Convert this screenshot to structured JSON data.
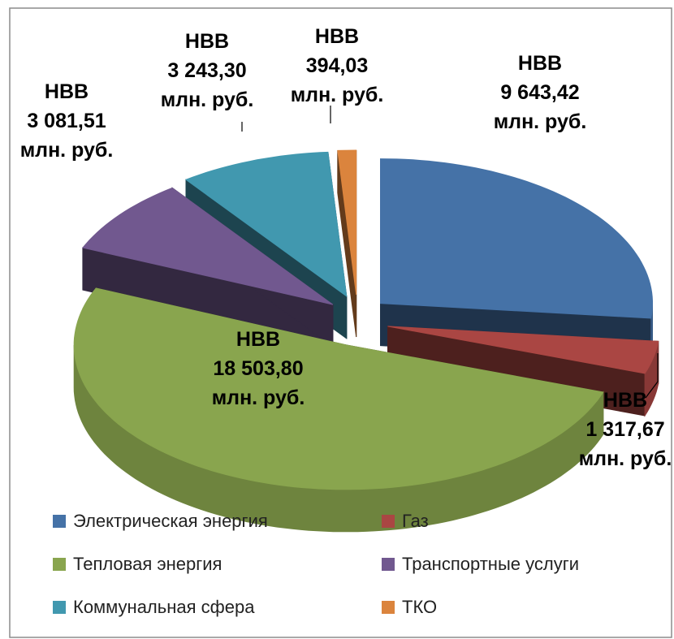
{
  "chart_data": {
    "type": "pie3d",
    "categories": [
      "Электрическая энергия",
      "Газ",
      "Тепловая энергия",
      "Транспортные услуги",
      "Коммунальная сфера",
      "ТКО"
    ],
    "values": [
      9643.42,
      1317.67,
      18503.8,
      3081.51,
      3243.3,
      394.03
    ],
    "value_labels": [
      "НВВ\n9 643,42\nмлн. руб.",
      "НВВ\n1 317,67\nмлн. руб.",
      "НВВ\n18 503,80\nмлн. руб.",
      "НВВ\n3 081,51\nмлн. руб.",
      "НВВ\n3 243,30\nмлн. руб.",
      "НВВ\n394,03\nмлн. руб."
    ],
    "colors": [
      "#4572a7",
      "#aa4643",
      "#89a54e",
      "#71588f",
      "#4198af",
      "#db843d"
    ],
    "legend": "bottom"
  }
}
